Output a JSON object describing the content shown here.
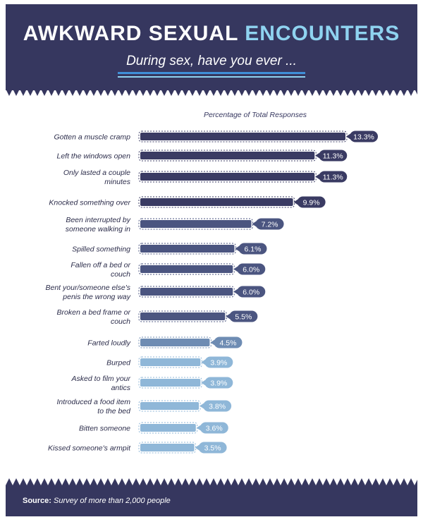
{
  "header": {
    "title_part1": "AWKWARD SEXUAL",
    "title_part2": "ENCOUNTERS",
    "subtitle": "During sex, have you ever ..."
  },
  "colors": {
    "dark": "#36375f",
    "accent": "#8fd3f0",
    "bar_gradient": [
      "#3a3b63",
      "#4b5580",
      "#6e8cb3",
      "#8fb7d8"
    ]
  },
  "chart_data": {
    "type": "bar",
    "orientation": "horizontal",
    "title": "Percentage of Total Responses",
    "categories": [
      "Gotten a muscle cramp",
      "Left the windows open",
      "Only lasted a couple minutes",
      "Knocked something over",
      "Been interrupted by someone walking in",
      "Spilled something",
      "Fallen off a bed or couch",
      "Bent your/someone else's penis the wrong way",
      "Broken a bed frame or couch",
      "Farted loudly",
      "Burped",
      "Asked to film your antics",
      "Introduced a food item to the bed",
      "Bitten someone",
      "Kissed someone's armpit"
    ],
    "values": [
      13.3,
      11.3,
      11.3,
      9.9,
      7.2,
      6.1,
      6.0,
      6.0,
      5.5,
      4.5,
      3.9,
      3.9,
      3.8,
      3.6,
      3.5
    ],
    "value_labels": [
      "13.3%",
      "11.3%",
      "11.3%",
      "9.9%",
      "7.2%",
      "6.1%",
      "6.0%",
      "6.0%",
      "5.5%",
      "4.5%",
      "3.9%",
      "3.9%",
      "3.8%",
      "3.6%",
      "3.5%"
    ],
    "xlim": [
      0,
      13.3
    ]
  },
  "footer": {
    "source_label": "Source:",
    "source_text": "Survey of more than 2,000 people"
  }
}
